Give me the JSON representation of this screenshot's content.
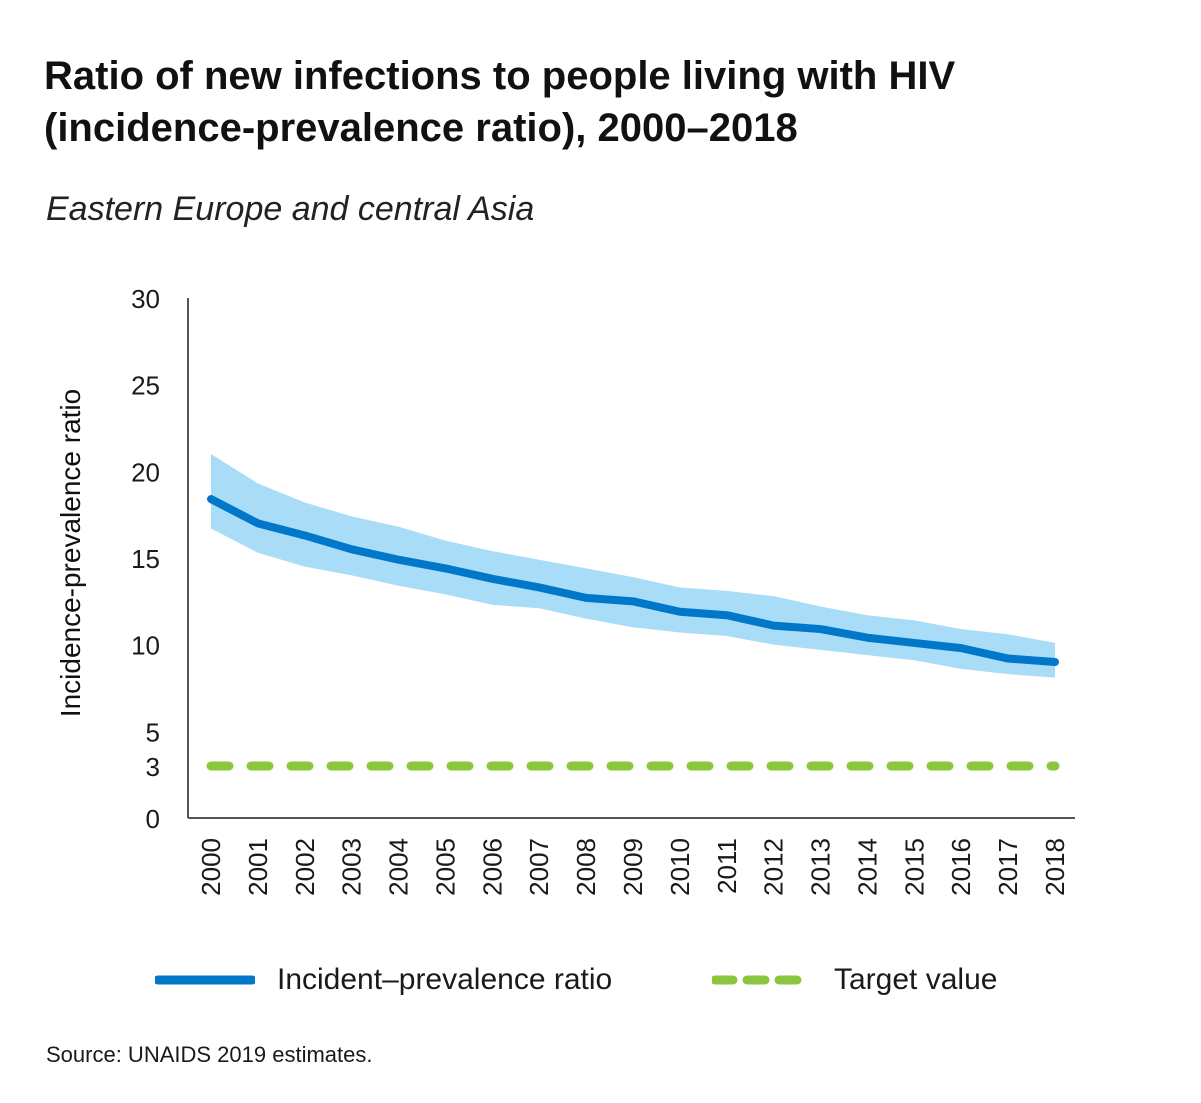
{
  "title": "Ratio of new infections to people living with HIV (incidence-prevalence ratio), 2000–2018",
  "subtitle": "Eastern Europe and central Asia",
  "source": "Source: UNAIDS 2019 estimates.",
  "colors": {
    "line": "#0077c8",
    "band": "#a9dcf7",
    "target": "#8cc63f",
    "axis": "#555555"
  },
  "legend": {
    "ratio": "Incident–prevalence ratio",
    "target": "Target value"
  },
  "chart_data": {
    "type": "line",
    "ylabel": "Incidence-prevalence ratio",
    "ylim": [
      0,
      30
    ],
    "yticks": [
      0,
      3,
      5,
      10,
      15,
      20,
      25,
      30
    ],
    "categories": [
      "2000",
      "2001",
      "2002",
      "2003",
      "2004",
      "2005",
      "2006",
      "2007",
      "2008",
      "2009",
      "2010",
      "2011",
      "2012",
      "2013",
      "2014",
      "2015",
      "2016",
      "2017",
      "2018"
    ],
    "series": [
      {
        "name": "Incident–prevalence ratio",
        "values": [
          18.4,
          17.0,
          16.3,
          15.5,
          14.9,
          14.4,
          13.8,
          13.3,
          12.7,
          12.5,
          11.9,
          11.7,
          11.1,
          10.9,
          10.4,
          10.1,
          9.8,
          9.2,
          9.0
        ],
        "lower": [
          16.7,
          15.3,
          14.5,
          14.0,
          13.4,
          12.9,
          12.3,
          12.1,
          11.5,
          11.0,
          10.7,
          10.5,
          10.0,
          9.7,
          9.4,
          9.1,
          8.6,
          8.3,
          8.1
        ],
        "upper": [
          21.0,
          19.3,
          18.2,
          17.4,
          16.8,
          16.0,
          15.4,
          14.9,
          14.4,
          13.9,
          13.3,
          13.1,
          12.8,
          12.2,
          11.7,
          11.4,
          10.9,
          10.6,
          10.1
        ]
      },
      {
        "name": "Target value",
        "values": [
          3,
          3,
          3,
          3,
          3,
          3,
          3,
          3,
          3,
          3,
          3,
          3,
          3,
          3,
          3,
          3,
          3,
          3,
          3
        ]
      }
    ],
    "grid": false,
    "legend_position": "bottom"
  }
}
